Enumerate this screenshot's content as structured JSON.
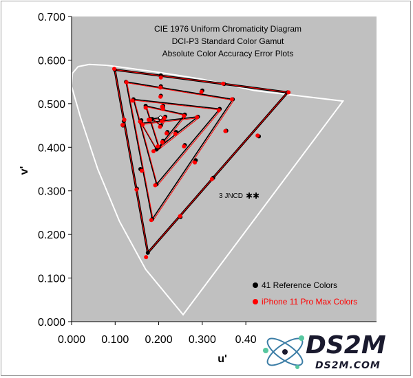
{
  "chart_data": {
    "type": "scatter",
    "title_lines": [
      "CIE 1976 Uniform Chromaticity Diagram",
      "DCI-P3 Standard Color Gamut",
      "Absolute Color Accuracy Error Plots"
    ],
    "xlabel": "u'",
    "ylabel": "v'",
    "xlim": [
      0.0,
      0.7
    ],
    "ylim": [
      0.0,
      0.7
    ],
    "x_ticks": [
      "0.000",
      "0.100",
      "0.200",
      "0.300",
      "0.40"
    ],
    "y_ticks": [
      "0.000",
      "0.100",
      "0.200",
      "0.300",
      "0.400",
      "0.500",
      "0.600",
      "0.700"
    ],
    "plot_background": "#c0c0c0",
    "grid": false,
    "legend_position": "bottom-right",
    "annotation": "3 JNCD",
    "spectral_locus": [
      [
        0.256,
        0.016
      ],
      [
        0.17,
        0.12
      ],
      [
        0.11,
        0.23
      ],
      [
        0.06,
        0.35
      ],
      [
        0.02,
        0.47
      ],
      [
        0.0,
        0.54
      ],
      [
        0.002,
        0.57
      ],
      [
        0.015,
        0.585
      ],
      [
        0.04,
        0.59
      ],
      [
        0.08,
        0.588
      ],
      [
        0.12,
        0.583
      ],
      [
        0.2,
        0.572
      ],
      [
        0.3,
        0.556
      ],
      [
        0.42,
        0.53
      ],
      [
        0.623,
        0.506
      ],
      [
        0.256,
        0.016
      ]
    ],
    "gamut_triangle": [
      [
        0.099,
        0.578
      ],
      [
        0.496,
        0.526
      ],
      [
        0.175,
        0.158
      ]
    ],
    "series": [
      {
        "name": "41 Reference Colors",
        "color": "#000000",
        "points": [
          [
            0.099,
            0.578
          ],
          [
            0.205,
            0.565
          ],
          [
            0.35,
            0.545
          ],
          [
            0.496,
            0.526
          ],
          [
            0.43,
            0.425
          ],
          [
            0.355,
            0.438
          ],
          [
            0.325,
            0.33
          ],
          [
            0.25,
            0.24
          ],
          [
            0.175,
            0.158
          ],
          [
            0.15,
            0.305
          ],
          [
            0.118,
            0.45
          ],
          [
            0.12,
            0.46
          ],
          [
            0.125,
            0.55
          ],
          [
            0.205,
            0.54
          ],
          [
            0.3,
            0.53
          ],
          [
            0.37,
            0.51
          ],
          [
            0.285,
            0.37
          ],
          [
            0.185,
            0.235
          ],
          [
            0.158,
            0.35
          ],
          [
            0.142,
            0.51
          ],
          [
            0.205,
            0.518
          ],
          [
            0.34,
            0.488
          ],
          [
            0.26,
            0.405
          ],
          [
            0.195,
            0.315
          ],
          [
            0.16,
            0.455
          ],
          [
            0.16,
            0.462
          ],
          [
            0.21,
            0.495
          ],
          [
            0.29,
            0.47
          ],
          [
            0.24,
            0.435
          ],
          [
            0.195,
            0.395
          ],
          [
            0.18,
            0.465
          ],
          [
            0.21,
            0.49
          ],
          [
            0.26,
            0.475
          ],
          [
            0.22,
            0.435
          ],
          [
            0.2,
            0.4
          ],
          [
            0.17,
            0.495
          ],
          [
            0.215,
            0.47
          ],
          [
            0.205,
            0.45
          ],
          [
            0.185,
            0.465
          ],
          [
            0.21,
            0.415
          ],
          [
            0.204,
            0.465
          ]
        ]
      },
      {
        "name": "iPhone 11 Pro Max Colors",
        "color": "#ff0000",
        "points": [
          [
            0.098,
            0.58
          ],
          [
            0.205,
            0.56
          ],
          [
            0.348,
            0.546
          ],
          [
            0.498,
            0.526
          ],
          [
            0.427,
            0.427
          ],
          [
            0.353,
            0.437
          ],
          [
            0.322,
            0.327
          ],
          [
            0.249,
            0.242
          ],
          [
            0.171,
            0.148
          ],
          [
            0.149,
            0.303
          ],
          [
            0.117,
            0.451
          ],
          [
            0.121,
            0.463
          ],
          [
            0.126,
            0.549
          ],
          [
            0.204,
            0.537
          ],
          [
            0.298,
            0.527
          ],
          [
            0.368,
            0.51
          ],
          [
            0.283,
            0.365
          ],
          [
            0.183,
            0.233
          ],
          [
            0.161,
            0.346
          ],
          [
            0.14,
            0.507
          ],
          [
            0.204,
            0.516
          ],
          [
            0.338,
            0.485
          ],
          [
            0.258,
            0.402
          ],
          [
            0.192,
            0.313
          ],
          [
            0.157,
            0.459
          ],
          [
            0.163,
            0.452
          ],
          [
            0.208,
            0.493
          ],
          [
            0.288,
            0.469
          ],
          [
            0.238,
            0.431
          ],
          [
            0.188,
            0.391
          ],
          [
            0.177,
            0.463
          ],
          [
            0.21,
            0.488
          ],
          [
            0.258,
            0.472
          ],
          [
            0.218,
            0.432
          ],
          [
            0.198,
            0.402
          ],
          [
            0.17,
            0.491
          ],
          [
            0.213,
            0.467
          ],
          [
            0.203,
            0.447
          ],
          [
            0.18,
            0.463
          ],
          [
            0.208,
            0.412
          ],
          [
            0.207,
            0.46
          ]
        ]
      }
    ],
    "nested_triangles": [
      [
        [
          0.125,
          0.55
        ],
        [
          0.37,
          0.51
        ],
        [
          0.185,
          0.235
        ]
      ],
      [
        [
          0.142,
          0.51
        ],
        [
          0.34,
          0.488
        ],
        [
          0.195,
          0.315
        ]
      ],
      [
        [
          0.16,
          0.455
        ],
        [
          0.29,
          0.47
        ],
        [
          0.195,
          0.395
        ]
      ],
      [
        [
          0.17,
          0.495
        ],
        [
          0.26,
          0.475
        ],
        [
          0.2,
          0.4
        ]
      ],
      [
        [
          0.185,
          0.465
        ],
        [
          0.215,
          0.47
        ],
        [
          0.205,
          0.45
        ]
      ]
    ]
  },
  "logo": {
    "text": "DS2M",
    "url": "DS2M.COM",
    "colors": {
      "ink": "#1a1a2e",
      "orbit": "#3a7ca5",
      "electron": "#57c7a0"
    }
  }
}
